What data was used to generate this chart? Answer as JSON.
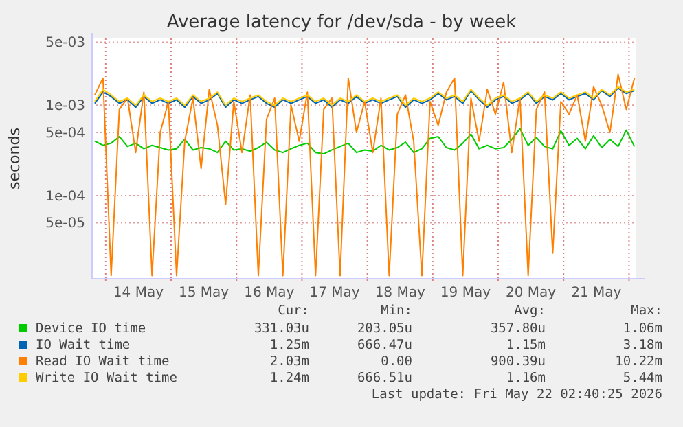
{
  "chart_data": {
    "type": "line",
    "title": "Average latency for /dev/sda - by week",
    "ylabel": "seconds",
    "log": "y",
    "grid": true,
    "legend": "bottom",
    "x": [
      "2026-05-13T20:00",
      "2026-05-13T23:00",
      "2026-05-14T02:00",
      "2026-05-14T05:00",
      "2026-05-14T08:00",
      "2026-05-14T11:00",
      "2026-05-14T14:00",
      "2026-05-14T17:00",
      "2026-05-14T20:00",
      "2026-05-14T23:00",
      "2026-05-15T02:00",
      "2026-05-15T05:00",
      "2026-05-15T08:00",
      "2026-05-15T11:00",
      "2026-05-15T14:00",
      "2026-05-15T17:00",
      "2026-05-15T20:00",
      "2026-05-15T23:00",
      "2026-05-16T02:00",
      "2026-05-16T05:00",
      "2026-05-16T08:00",
      "2026-05-16T11:00",
      "2026-05-16T14:00",
      "2026-05-16T17:00",
      "2026-05-16T20:00",
      "2026-05-16T23:00",
      "2026-05-17T02:00",
      "2026-05-17T05:00",
      "2026-05-17T08:00",
      "2026-05-17T11:00",
      "2026-05-17T14:00",
      "2026-05-17T17:00",
      "2026-05-17T20:00",
      "2026-05-17T23:00",
      "2026-05-18T02:00",
      "2026-05-18T05:00",
      "2026-05-18T08:00",
      "2026-05-18T11:00",
      "2026-05-18T14:00",
      "2026-05-18T17:00",
      "2026-05-18T20:00",
      "2026-05-18T23:00",
      "2026-05-19T02:00",
      "2026-05-19T05:00",
      "2026-05-19T08:00",
      "2026-05-19T11:00",
      "2026-05-19T14:00",
      "2026-05-19T17:00",
      "2026-05-19T20:00",
      "2026-05-19T23:00",
      "2026-05-20T02:00",
      "2026-05-20T05:00",
      "2026-05-20T08:00",
      "2026-05-20T11:00",
      "2026-05-20T14:00",
      "2026-05-20T17:00",
      "2026-05-20T20:00",
      "2026-05-20T23:00",
      "2026-05-21T02:00",
      "2026-05-21T05:00",
      "2026-05-21T08:00",
      "2026-05-21T11:00",
      "2026-05-21T14:00",
      "2026-05-21T17:00",
      "2026-05-21T20:00",
      "2026-05-21T23:00",
      "2026-05-22T02:00"
    ],
    "xlim": [
      "2026-05-13T19:00",
      "2026-05-22T02:40"
    ],
    "xticks": [
      {
        "value": "2026-05-14T00:00",
        "label": null
      },
      {
        "value": "2026-05-14T12:00",
        "label": "14 May"
      },
      {
        "value": "2026-05-15T00:00",
        "label": null
      },
      {
        "value": "2026-05-15T12:00",
        "label": "15 May"
      },
      {
        "value": "2026-05-16T00:00",
        "label": null
      },
      {
        "value": "2026-05-16T12:00",
        "label": "16 May"
      },
      {
        "value": "2026-05-17T00:00",
        "label": null
      },
      {
        "value": "2026-05-17T12:00",
        "label": "17 May"
      },
      {
        "value": "2026-05-18T00:00",
        "label": null
      },
      {
        "value": "2026-05-18T12:00",
        "label": "18 May"
      },
      {
        "value": "2026-05-19T00:00",
        "label": null
      },
      {
        "value": "2026-05-19T12:00",
        "label": "19 May"
      },
      {
        "value": "2026-05-20T00:00",
        "label": null
      },
      {
        "value": "2026-05-20T12:00",
        "label": "20 May"
      },
      {
        "value": "2026-05-21T00:00",
        "label": null
      },
      {
        "value": "2026-05-21T12:00",
        "label": "21 May"
      },
      {
        "value": "2026-05-22T00:00",
        "label": null
      }
    ],
    "ylim": [
      1.2e-05,
      0.0055
    ],
    "yticks": [
      {
        "value": 5e-05,
        "label": "5e-05"
      },
      {
        "value": 0.0001,
        "label": "1e-04"
      },
      {
        "value": 0.0005,
        "label": "5e-04"
      },
      {
        "value": 0.001,
        "label": "1e-03"
      },
      {
        "value": 0.005,
        "label": "5e-03"
      }
    ],
    "series": [
      {
        "name": "Device IO time",
        "color": "#00cc00",
        "values": [
          0.0004,
          0.00036,
          0.00038,
          0.00045,
          0.00035,
          0.00038,
          0.00033,
          0.00036,
          0.00034,
          0.00032,
          0.00033,
          0.00042,
          0.00032,
          0.00034,
          0.00033,
          0.0003,
          0.0004,
          0.00032,
          0.00033,
          0.00031,
          0.00034,
          0.00039,
          0.00032,
          0.0003,
          0.00033,
          0.00036,
          0.00038,
          0.0003,
          0.00029,
          0.00032,
          0.00035,
          0.00038,
          0.0003,
          0.00032,
          0.00031,
          0.00036,
          0.00032,
          0.00034,
          0.00039,
          0.0003,
          0.00033,
          0.00043,
          0.00045,
          0.00034,
          0.00032,
          0.00038,
          0.00048,
          0.00033,
          0.00036,
          0.00033,
          0.00034,
          0.00042,
          0.00055,
          0.00036,
          0.00044,
          0.00035,
          0.00033,
          0.00052,
          0.00036,
          0.00043,
          0.00033,
          0.00046,
          0.00034,
          0.00042,
          0.00035,
          0.00053,
          0.00035
        ]
      },
      {
        "name": "IO Wait time",
        "color": "#0066b3",
        "values": [
          0.00105,
          0.0014,
          0.00125,
          0.00105,
          0.00115,
          0.00095,
          0.00125,
          0.00105,
          0.00115,
          0.00105,
          0.00115,
          0.00095,
          0.00125,
          0.00105,
          0.00115,
          0.00135,
          0.00095,
          0.00115,
          0.00105,
          0.00115,
          0.00125,
          0.00105,
          0.00095,
          0.00115,
          0.00105,
          0.00115,
          0.00125,
          0.00105,
          0.00115,
          0.00095,
          0.00115,
          0.00105,
          0.00125,
          0.00105,
          0.00115,
          0.00105,
          0.00115,
          0.00125,
          0.00095,
          0.00115,
          0.00105,
          0.00115,
          0.00135,
          0.00115,
          0.00125,
          0.00105,
          0.00145,
          0.00115,
          0.00095,
          0.00115,
          0.00125,
          0.00105,
          0.00115,
          0.00135,
          0.00105,
          0.00125,
          0.00115,
          0.00135,
          0.00115,
          0.00125,
          0.00135,
          0.00115,
          0.00145,
          0.00125,
          0.00155,
          0.00135,
          0.00145
        ]
      },
      {
        "name": "Read IO Wait time",
        "color": "#ff8000",
        "values": [
          0.0013,
          0.002,
          1.3e-05,
          0.0009,
          0.0012,
          0.0003,
          0.0014,
          1.3e-05,
          0.0005,
          0.0011,
          1.3e-05,
          0.0004,
          0.0012,
          0.0002,
          0.0015,
          0.0006,
          8e-05,
          0.0011,
          0.0003,
          0.0013,
          1.3e-05,
          0.0007,
          0.0012,
          1.3e-05,
          0.001,
          0.0004,
          0.0014,
          1.3e-05,
          0.0009,
          0.0012,
          1.3e-05,
          0.002,
          0.0005,
          0.0011,
          0.0003,
          0.0012,
          1.3e-05,
          0.0008,
          0.0013,
          0.0004,
          1.3e-05,
          0.0011,
          0.0006,
          0.0014,
          0.002,
          1.3e-05,
          0.0012,
          0.0004,
          0.0015,
          0.0008,
          0.0018,
          0.0003,
          0.0012,
          1.3e-05,
          0.0009,
          0.0014,
          2.3e-05,
          0.0011,
          0.0008,
          0.0013,
          0.0004,
          0.0016,
          0.001,
          0.0005,
          0.0022,
          0.0009,
          0.002
        ]
      },
      {
        "name": "Write IO Wait time",
        "color": "#ffcc00",
        "values": [
          0.0011,
          0.0015,
          0.0013,
          0.0011,
          0.0012,
          0.001,
          0.0013,
          0.0011,
          0.0012,
          0.0011,
          0.0012,
          0.001,
          0.0013,
          0.0011,
          0.0012,
          0.0014,
          0.001,
          0.0012,
          0.0011,
          0.0012,
          0.0013,
          0.0011,
          0.001,
          0.0012,
          0.0011,
          0.0012,
          0.0013,
          0.0011,
          0.0012,
          0.001,
          0.0012,
          0.0011,
          0.0013,
          0.0011,
          0.0012,
          0.0011,
          0.0012,
          0.0013,
          0.001,
          0.0012,
          0.0011,
          0.0012,
          0.0014,
          0.0012,
          0.0013,
          0.0011,
          0.0015,
          0.0012,
          0.001,
          0.0012,
          0.0013,
          0.0011,
          0.0012,
          0.0014,
          0.0011,
          0.0013,
          0.0012,
          0.0014,
          0.0012,
          0.0013,
          0.0014,
          0.0012,
          0.0015,
          0.0013,
          0.0016,
          0.0014,
          0.0015
        ]
      }
    ],
    "annotations": [
      "Cur:",
      "Min:",
      "Avg:",
      "Max:",
      "331.03u",
      "203.05u",
      "357.80u",
      "1.06m",
      "1.25m",
      "666.47u",
      "1.15m",
      "3.18m",
      "2.03m",
      "0.00",
      "900.39u",
      "10.22m",
      "1.24m",
      "666.51u",
      "1.16m",
      "5.44m",
      "Last update: Fri May 22 02:40:25 2026"
    ]
  }
}
